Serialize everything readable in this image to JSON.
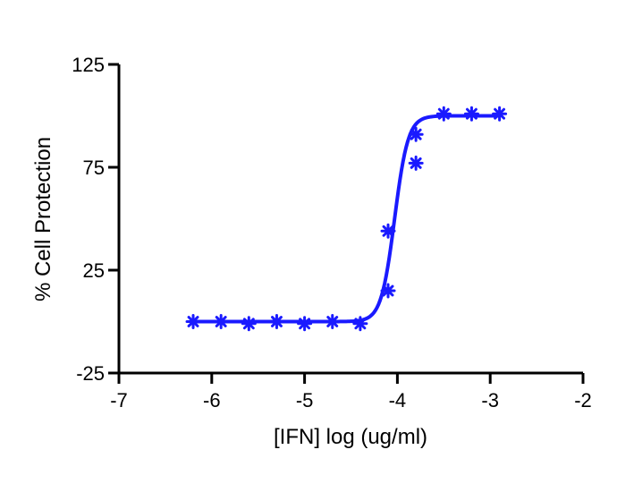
{
  "chart_data": {
    "type": "scatter",
    "title": "",
    "xlabel": "[IFN] log (ug/ml)",
    "ylabel": "% Cell Protection",
    "xlim": [
      -7,
      -2
    ],
    "ylim": [
      -25,
      125
    ],
    "xticks": [
      -7,
      -6,
      -5,
      -4,
      -3,
      -2
    ],
    "yticks": [
      -25,
      25,
      75,
      125
    ],
    "grid": false,
    "legend": "none",
    "color": "#1a1aff",
    "series": [
      {
        "type": "scatter",
        "marker": "asterisk",
        "points": [
          {
            "x": -6.2,
            "y": 0
          },
          {
            "x": -5.9,
            "y": 0
          },
          {
            "x": -5.6,
            "y": -1
          },
          {
            "x": -5.3,
            "y": 0
          },
          {
            "x": -5.0,
            "y": -1
          },
          {
            "x": -4.7,
            "y": 0
          },
          {
            "x": -4.4,
            "y": -1
          },
          {
            "x": -4.1,
            "y": 15
          },
          {
            "x": -4.1,
            "y": 44
          },
          {
            "x": -3.8,
            "y": 77
          },
          {
            "x": -3.8,
            "y": 91
          },
          {
            "x": -3.5,
            "y": 101
          },
          {
            "x": -3.2,
            "y": 101
          },
          {
            "x": -2.9,
            "y": 101
          }
        ]
      },
      {
        "type": "line",
        "fit": "sigmoid",
        "bottom": 0,
        "top": 100,
        "logEC50": -4.03,
        "hill": 6,
        "x_range": [
          -6.2,
          -2.9
        ]
      }
    ]
  }
}
